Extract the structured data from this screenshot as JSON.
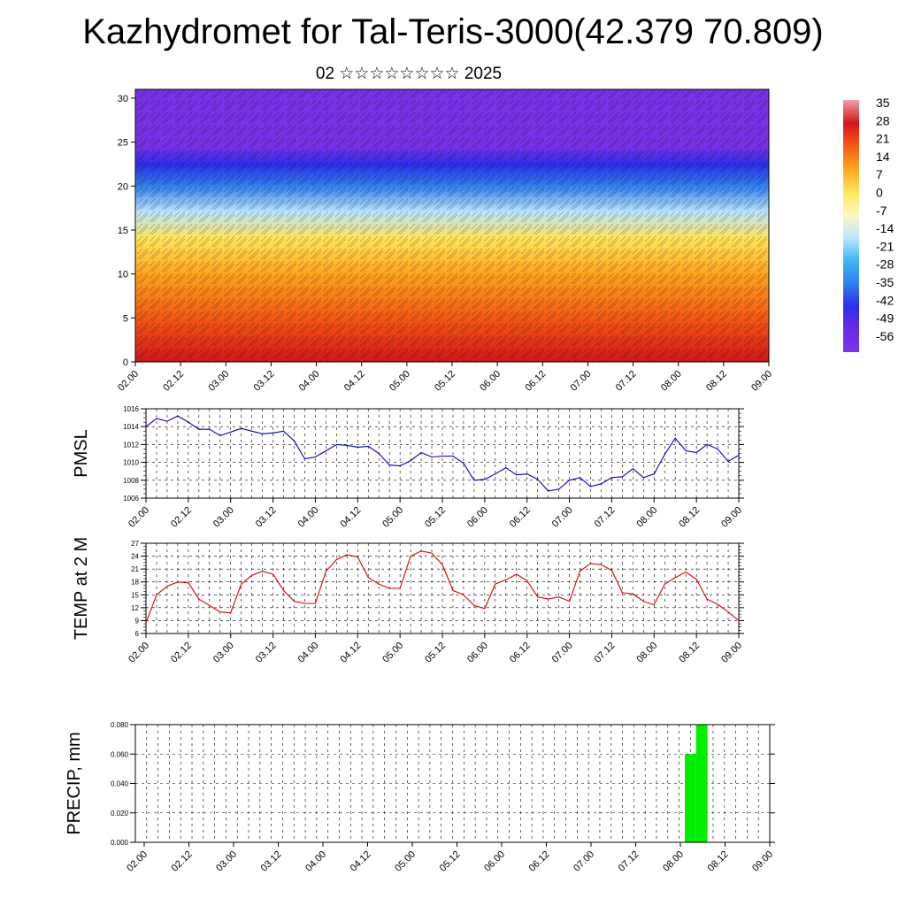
{
  "title": "Kazhydromet for Tal-Teris-3000(42.379 70.809)",
  "subtitle": "02 ☆☆☆☆☆☆☆☆ 2025",
  "time_ticks": [
    "02.00",
    "02.12",
    "03.00",
    "03.12",
    "04.00",
    "04.12",
    "05.00",
    "05.12",
    "06.00",
    "06.12",
    "07.00",
    "07.12",
    "08.00",
    "08.12",
    "09.00"
  ],
  "chart_data": [
    {
      "type": "heatmap",
      "name": "cross-section",
      "y_ticks": [
        0,
        5,
        10,
        15,
        20,
        25,
        30
      ],
      "ylim": [
        0,
        31
      ],
      "colorbar_labels": [
        "35",
        "28",
        "21",
        "14",
        "7",
        "0",
        "-7",
        "-14",
        "-21",
        "-28",
        "-35",
        "-42",
        "-49",
        "-56"
      ],
      "colormap": [
        "#f2a0a8",
        "#d4151c",
        "#f45a14",
        "#ffa51e",
        "#ffe65a",
        "#fff7c2",
        "#bfe6ff",
        "#3fb8ee",
        "#3080ec",
        "#2e2eea",
        "#6a2ce6",
        "#7a32e8"
      ],
      "level_temps": [
        {
          "h": 0,
          "t": 30
        },
        {
          "h": 5,
          "t": 20
        },
        {
          "h": 10,
          "t": 8
        },
        {
          "h": 14,
          "t": -2
        },
        {
          "h": 17,
          "t": -16
        },
        {
          "h": 20,
          "t": -30
        },
        {
          "h": 22.5,
          "t": -42
        },
        {
          "h": 24.5,
          "t": -56
        },
        {
          "h": 31,
          "t": -58
        }
      ]
    },
    {
      "type": "line",
      "name": "PMSL",
      "ylabel": "PMSL",
      "y_ticks": [
        1006,
        1008,
        1010,
        1012,
        1014,
        1016
      ],
      "ylim": [
        1006,
        1016
      ],
      "color": "#0000cc",
      "x_step_hours": 3,
      "values": [
        1014.0,
        1014.9,
        1014.6,
        1015.2,
        1014.5,
        1013.7,
        1013.7,
        1013.0,
        1013.4,
        1013.8,
        1013.5,
        1013.2,
        1013.3,
        1013.5,
        1012.4,
        1010.4,
        1010.6,
        1011.3,
        1012.0,
        1011.9,
        1011.7,
        1011.8,
        1011.0,
        1009.7,
        1009.6,
        1010.2,
        1011.1,
        1010.6,
        1010.7,
        1010.7,
        1009.9,
        1008.0,
        1008.1,
        1008.7,
        1009.4,
        1008.6,
        1008.7,
        1008.1,
        1006.8,
        1007.0,
        1008.0,
        1008.3,
        1007.3,
        1007.6,
        1008.3,
        1008.4,
        1009.3,
        1008.3,
        1008.7,
        1010.9,
        1012.7,
        1011.3,
        1011.1,
        1012.0,
        1011.5,
        1010.1,
        1010.8
      ]
    },
    {
      "type": "line",
      "name": "TEMP at 2 M",
      "ylabel": "TEMP at 2 M",
      "y_ticks": [
        6,
        9,
        12,
        15,
        18,
        21,
        24,
        27
      ],
      "ylim": [
        6,
        27
      ],
      "color": "#dd0000",
      "x_step_hours": 3,
      "values": [
        8.5,
        15.0,
        17.0,
        18.0,
        17.8,
        14.0,
        12.5,
        11.0,
        10.8,
        17.5,
        19.5,
        20.5,
        19.8,
        16.0,
        13.5,
        13.0,
        13.0,
        20.5,
        23.2,
        24.3,
        23.8,
        19.0,
        17.5,
        16.5,
        16.5,
        24.0,
        25.2,
        24.7,
        22.0,
        16.0,
        15.0,
        12.5,
        11.8,
        17.5,
        18.5,
        19.8,
        18.3,
        14.5,
        14.0,
        14.5,
        13.5,
        20.5,
        22.3,
        22.0,
        20.7,
        15.5,
        15.2,
        13.5,
        12.7,
        17.5,
        19.0,
        20.3,
        18.6,
        14.0,
        12.8,
        11.0,
        9.0
      ]
    },
    {
      "type": "bar",
      "name": "PRECIP",
      "ylabel": "PRECIP, mm",
      "y_ticks": [
        "0.000",
        "0.020",
        "0.040",
        "0.060",
        "0.080"
      ],
      "ylim": [
        0,
        0.08
      ],
      "color": "#00ee00",
      "bars": [
        {
          "t": "08.03",
          "value": 0.06
        },
        {
          "t": "08.06",
          "value": 0.08
        }
      ]
    }
  ]
}
